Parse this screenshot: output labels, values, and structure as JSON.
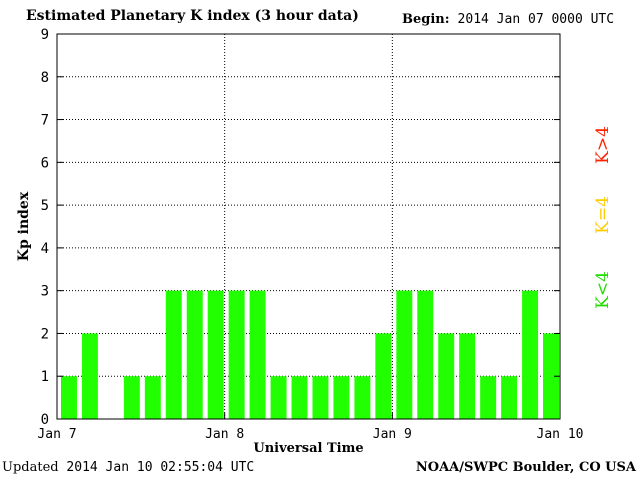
{
  "header": {
    "title": "Estimated Planetary K index (3 hour data)",
    "begin_label": "Begin:",
    "begin_value": "2014 Jan 07 0000 UTC"
  },
  "footer": {
    "updated_label": "Updated",
    "updated_value": "2014 Jan 10 02:55:04 UTC",
    "source": "NOAA/SWPC Boulder, CO USA"
  },
  "legend": [
    {
      "label": "K>4",
      "color": "#ff2200"
    },
    {
      "label": "K=4",
      "color": "#ffcc00"
    },
    {
      "label": "K<4",
      "color": "#22dd00"
    }
  ],
  "chart_data": {
    "type": "bar",
    "xlabel": "Universal Time",
    "ylabel": "Kp index",
    "ylim": [
      0,
      9
    ],
    "yticks": [
      0,
      1,
      2,
      3,
      4,
      5,
      6,
      7,
      8,
      9
    ],
    "xticks": [
      "Jan 7",
      "Jan 8",
      "Jan 9",
      "Jan 10"
    ],
    "bars_per_day": 8,
    "grid": true,
    "bar_color": "#22ff00",
    "values": [
      1,
      2,
      0,
      1,
      1,
      3,
      3,
      3,
      3,
      3,
      1,
      1,
      1,
      1,
      1,
      2,
      3,
      3,
      2,
      2,
      1,
      1,
      3,
      2
    ]
  }
}
